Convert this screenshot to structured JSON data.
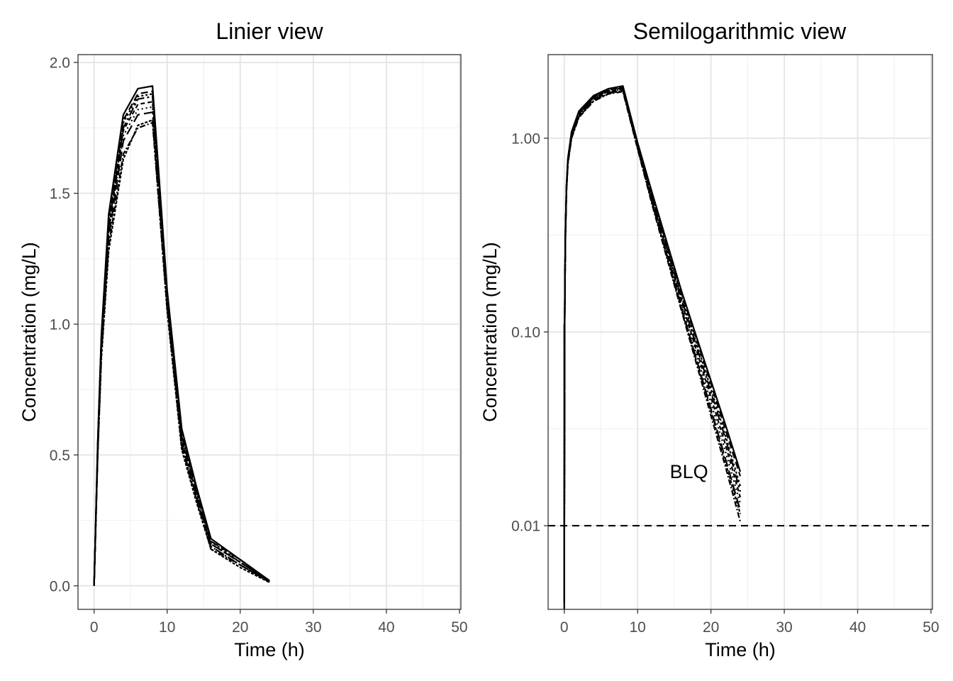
{
  "chart_data": [
    {
      "type": "line",
      "title": "Linier view",
      "xlabel": "Time (h)",
      "ylabel": "Concentration (mg/L)",
      "xlim": [
        -2.2,
        50.2
      ],
      "ylim": [
        -0.09,
        2.03
      ],
      "x_ticks": [
        "0",
        "10",
        "20",
        "30",
        "40",
        "50"
      ],
      "y_ticks": [
        "0.0",
        "0.5",
        "1.0",
        "1.5",
        "2.0"
      ],
      "x": [
        0,
        0.5,
        1,
        2,
        4,
        6,
        8,
        10,
        12,
        14,
        16,
        20,
        24
      ],
      "series": [
        {
          "values": [
            0,
            0.55,
            0.96,
            1.42,
            1.8,
            1.9,
            1.91,
            1.13,
            0.6,
            0.38,
            0.18,
            0.1,
            0.02
          ]
        },
        {
          "values": [
            0,
            0.54,
            0.95,
            1.4,
            1.78,
            1.88,
            1.89,
            1.12,
            0.59,
            0.37,
            0.17,
            0.1,
            0.019
          ]
        },
        {
          "values": [
            0,
            0.53,
            0.94,
            1.39,
            1.77,
            1.87,
            1.88,
            1.11,
            0.58,
            0.37,
            0.17,
            0.09,
            0.018
          ]
        },
        {
          "values": [
            0,
            0.53,
            0.93,
            1.37,
            1.75,
            1.86,
            1.87,
            1.1,
            0.57,
            0.36,
            0.16,
            0.09,
            0.018
          ]
        },
        {
          "values": [
            0,
            0.52,
            0.92,
            1.36,
            1.74,
            1.84,
            1.85,
            1.1,
            0.56,
            0.35,
            0.16,
            0.09,
            0.017
          ]
        },
        {
          "values": [
            0,
            0.52,
            0.91,
            1.35,
            1.72,
            1.82,
            1.83,
            1.09,
            0.55,
            0.34,
            0.15,
            0.08,
            0.016
          ]
        },
        {
          "values": [
            0,
            0.51,
            0.9,
            1.33,
            1.7,
            1.8,
            1.81,
            1.08,
            0.54,
            0.34,
            0.15,
            0.08,
            0.015
          ]
        },
        {
          "values": [
            0,
            0.5,
            0.88,
            1.3,
            1.65,
            1.75,
            1.77,
            1.06,
            0.53,
            0.33,
            0.14,
            0.08,
            0.014
          ]
        },
        {
          "values": [
            0,
            0.5,
            0.87,
            1.28,
            1.63,
            1.76,
            1.78,
            1.05,
            0.52,
            0.32,
            0.14,
            0.07,
            0.013
          ]
        }
      ]
    },
    {
      "type": "line",
      "title": "Semilogarithmic view",
      "xlabel": "Time (h)",
      "ylabel": "Concentration (mg/L)",
      "scale_y": "log10",
      "xlim": [
        -2.2,
        50.2
      ],
      "ylim": [
        0.0037,
        2.7
      ],
      "x_ticks": [
        "0",
        "10",
        "20",
        "30",
        "40",
        "50"
      ],
      "y_ticks": [
        {
          "label": "0.01",
          "value": 0.01
        },
        {
          "label": "0.10",
          "value": 0.1
        },
        {
          "label": "1.00",
          "value": 1
        }
      ],
      "x": [
        0,
        0.05,
        0.15,
        0.3,
        0.5,
        1,
        2,
        4,
        6,
        8,
        10,
        12,
        14,
        16,
        18,
        20,
        22,
        24
      ],
      "reference_line": {
        "y": 0.01,
        "style": "dashed"
      },
      "annotation": {
        "text": "BLQ",
        "x": 17,
        "y": 0.019
      },
      "series": [
        {
          "values": [
            0.004,
            0.11,
            0.32,
            0.57,
            0.79,
            1.08,
            1.38,
            1.66,
            1.8,
            1.86,
            0.95,
            0.52,
            0.29,
            0.162,
            0.095,
            0.056,
            0.033,
            0.019
          ]
        },
        {
          "values": [
            0.004,
            0.11,
            0.32,
            0.56,
            0.78,
            1.07,
            1.36,
            1.64,
            1.78,
            1.84,
            0.94,
            0.51,
            0.28,
            0.158,
            0.092,
            0.054,
            0.031,
            0.018
          ]
        },
        {
          "values": [
            0.004,
            0.1,
            0.31,
            0.56,
            0.78,
            1.06,
            1.35,
            1.63,
            1.77,
            1.83,
            0.93,
            0.5,
            0.275,
            0.152,
            0.088,
            0.051,
            0.029,
            0.016
          ]
        },
        {
          "values": [
            0.004,
            0.1,
            0.31,
            0.55,
            0.77,
            1.05,
            1.34,
            1.62,
            1.76,
            1.82,
            0.92,
            0.49,
            0.27,
            0.148,
            0.085,
            0.049,
            0.028,
            0.015
          ]
        },
        {
          "values": [
            0.004,
            0.1,
            0.3,
            0.55,
            0.76,
            1.04,
            1.33,
            1.61,
            1.75,
            1.8,
            0.91,
            0.48,
            0.26,
            0.143,
            0.081,
            0.046,
            0.026,
            0.014
          ]
        },
        {
          "values": [
            0.004,
            0.1,
            0.3,
            0.54,
            0.76,
            1.03,
            1.32,
            1.6,
            1.74,
            1.79,
            0.9,
            0.47,
            0.255,
            0.138,
            0.077,
            0.043,
            0.024,
            0.013
          ]
        },
        {
          "values": [
            0.004,
            0.1,
            0.3,
            0.54,
            0.75,
            1.02,
            1.3,
            1.58,
            1.72,
            1.77,
            0.89,
            0.46,
            0.25,
            0.133,
            0.073,
            0.04,
            0.022,
            0.012
          ]
        },
        {
          "values": [
            0.004,
            0.1,
            0.29,
            0.53,
            0.74,
            1.0,
            1.28,
            1.55,
            1.69,
            1.74,
            0.88,
            0.45,
            0.24,
            0.128,
            0.069,
            0.037,
            0.02,
            0.0105
          ]
        },
        {
          "values": [
            0.004,
            0.1,
            0.29,
            0.53,
            0.74,
            1.01,
            1.29,
            1.56,
            1.7,
            1.76,
            0.89,
            0.46,
            0.245,
            0.13,
            0.071,
            0.039,
            0.021,
            0.0115
          ]
        }
      ]
    }
  ],
  "colors": {
    "line": "#000000",
    "grid_major": "#e6e6e6",
    "grid_minor": "#f2f2f2",
    "panel_border": "#333333",
    "tick_text": "#4d4d4d"
  }
}
